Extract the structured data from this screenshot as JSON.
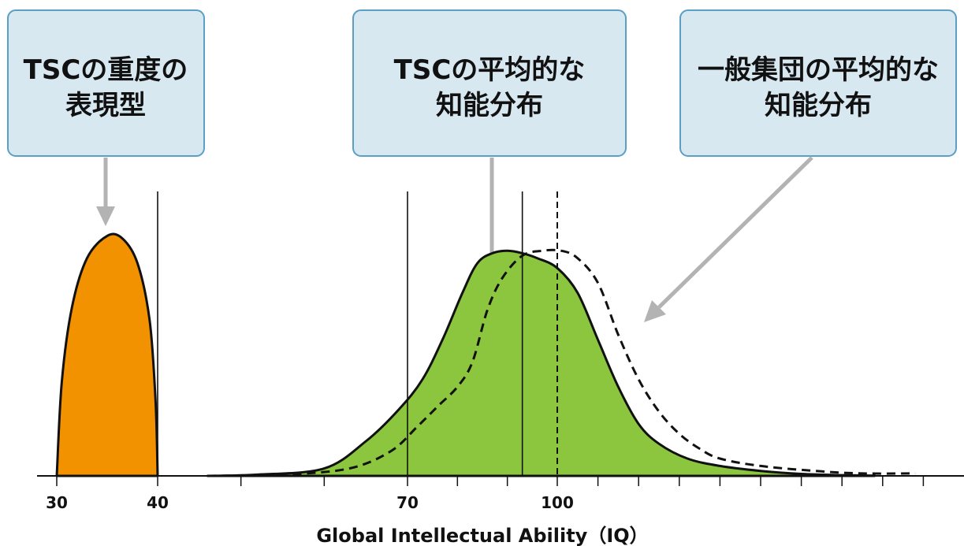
{
  "colors": {
    "severe_fill": "#f39200",
    "tsc_fill": "#8cc63f",
    "curve_stroke": "#111111",
    "arrow": "#b3b3b3",
    "callout_fill": "#d7e8f1",
    "callout_stroke": "#5a9fc4"
  },
  "callouts": {
    "severe": {
      "line1": "TSCの重度の",
      "line2": "表現型"
    },
    "tsc_mean": {
      "line1": "TSCの平均的な",
      "line2": "知能分布"
    },
    "general": {
      "line1": "一般集団の平均的な",
      "line2": "知能分布"
    }
  },
  "chart_data": {
    "type": "area",
    "xlabel": "Global Intellectual Ability（IQ）",
    "ylabel": "",
    "tick_labels": [
      "30",
      "40",
      "70",
      "100"
    ],
    "reference_lines": [
      {
        "x": 40,
        "style": "solid"
      },
      {
        "x": 70,
        "style": "solid"
      },
      {
        "x": 93,
        "style": "solid"
      },
      {
        "x": 100,
        "style": "dashed"
      }
    ],
    "series": [
      {
        "name": "TSCの重度の表現型",
        "style": "filled",
        "points": [
          [
            30,
            0
          ],
          [
            30.5,
            0.38
          ],
          [
            31.5,
            0.68
          ],
          [
            33,
            0.88
          ],
          [
            35,
            0.97
          ],
          [
            36.5,
            0.96
          ],
          [
            38,
            0.86
          ],
          [
            39.2,
            0.63
          ],
          [
            39.8,
            0.3
          ],
          [
            40,
            0
          ]
        ]
      },
      {
        "name": "TSCの平均的な知能分布",
        "style": "filled",
        "points": [
          [
            46,
            0
          ],
          [
            52,
            0.005
          ],
          [
            60,
            0.03
          ],
          [
            65,
            0.14
          ],
          [
            69,
            0.27
          ],
          [
            73,
            0.39
          ],
          [
            77,
            0.55
          ],
          [
            81,
            0.74
          ],
          [
            84,
            0.86
          ],
          [
            87,
            0.9
          ],
          [
            90,
            0.91
          ],
          [
            93,
            0.9
          ],
          [
            96,
            0.88
          ],
          [
            100,
            0.84
          ],
          [
            105,
            0.74
          ],
          [
            110,
            0.55
          ],
          [
            115,
            0.36
          ],
          [
            120,
            0.21
          ],
          [
            125,
            0.13
          ],
          [
            132,
            0.07
          ],
          [
            140,
            0.04
          ],
          [
            150,
            0.02
          ],
          [
            160,
            0.008
          ],
          [
            170,
            0.003
          ],
          [
            178,
            0.001
          ]
        ]
      },
      {
        "name": "一般集団の平均的な知能分布",
        "style": "dashed",
        "points": [
          [
            46,
            0
          ],
          [
            55,
            0.005
          ],
          [
            63,
            0.03
          ],
          [
            68,
            0.1
          ],
          [
            72,
            0.2
          ],
          [
            76,
            0.28
          ],
          [
            80,
            0.36
          ],
          [
            83,
            0.46
          ],
          [
            86,
            0.67
          ],
          [
            89,
            0.8
          ],
          [
            93,
            0.89
          ],
          [
            97,
            0.91
          ],
          [
            101,
            0.91
          ],
          [
            105,
            0.88
          ],
          [
            110,
            0.78
          ],
          [
            115,
            0.57
          ],
          [
            120,
            0.39
          ],
          [
            125,
            0.26
          ],
          [
            130,
            0.17
          ],
          [
            135,
            0.11
          ],
          [
            140,
            0.07
          ],
          [
            150,
            0.04
          ],
          [
            165,
            0.018
          ],
          [
            175,
            0.01
          ],
          [
            188,
            0.01
          ]
        ]
      }
    ]
  }
}
